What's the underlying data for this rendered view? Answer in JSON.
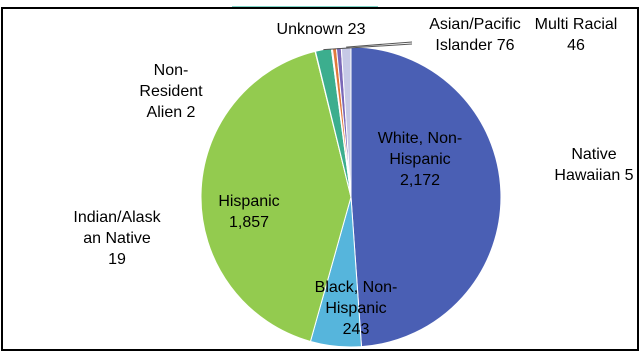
{
  "chart_data": {
    "type": "pie",
    "slices": [
      {
        "category": "White, Non-Hispanic",
        "value": 2172,
        "value_label": "2,172",
        "color": "#4a5fb4"
      },
      {
        "category": "Black, Non-Hispanic",
        "value": 243,
        "value_label": "243",
        "color": "#56b5dc"
      },
      {
        "category": "Hispanic",
        "value": 1857,
        "value_label": "1,857",
        "color": "#93cb4f"
      },
      {
        "category": "Non-Resident Alien",
        "value": 2,
        "value_label": "2",
        "color": "#e8e8e8"
      },
      {
        "category": "Asian/Pacific Islander",
        "value": 76,
        "value_label": "76",
        "color": "#3cae8e"
      },
      {
        "category": "Native Hawaiian",
        "value": 5,
        "value_label": "5",
        "color": "#2b6fb5"
      },
      {
        "category": "Indian/Alaskan Native",
        "value": 19,
        "value_label": "19",
        "color": "#e07a3c"
      },
      {
        "category": "Unknown",
        "value": 23,
        "value_label": "23",
        "color": "#7b68b8"
      },
      {
        "category": "Multi Racial",
        "value": 46,
        "value_label": "46",
        "color": "#c6c9e6"
      }
    ],
    "label_lines": {
      "White, Non-Hispanic": [
        "White, Non-",
        "Hispanic",
        "2,172"
      ],
      "Black, Non-Hispanic": [
        "Black, Non-",
        "Hispanic",
        "243"
      ],
      "Hispanic": [
        "Hispanic",
        "1,857"
      ],
      "Non-Resident Alien": [
        "Non-",
        "Resident",
        "Alien  2"
      ],
      "Asian/Pacific Islander": [
        "Asian/Pacific",
        "Islander  76"
      ],
      "Native Hawaiian": [
        "Native",
        "Hawaiian 5"
      ],
      "Indian/Alaskan Native": [
        "Indian/Alask",
        "an Native",
        "19"
      ],
      "Unknown": [
        "Unknown 23"
      ],
      "Multi Racial": [
        "Multi Racial",
        "46"
      ]
    },
    "slice_order": [
      "White, Non-Hispanic",
      "Black, Non-Hispanic",
      "Hispanic",
      "Non-Resident Alien",
      "Asian/Pacific Islander",
      "Native Hawaiian",
      "Indian/Alaskan Native",
      "Unknown",
      "Multi Racial"
    ],
    "title": "",
    "legend": "none"
  }
}
